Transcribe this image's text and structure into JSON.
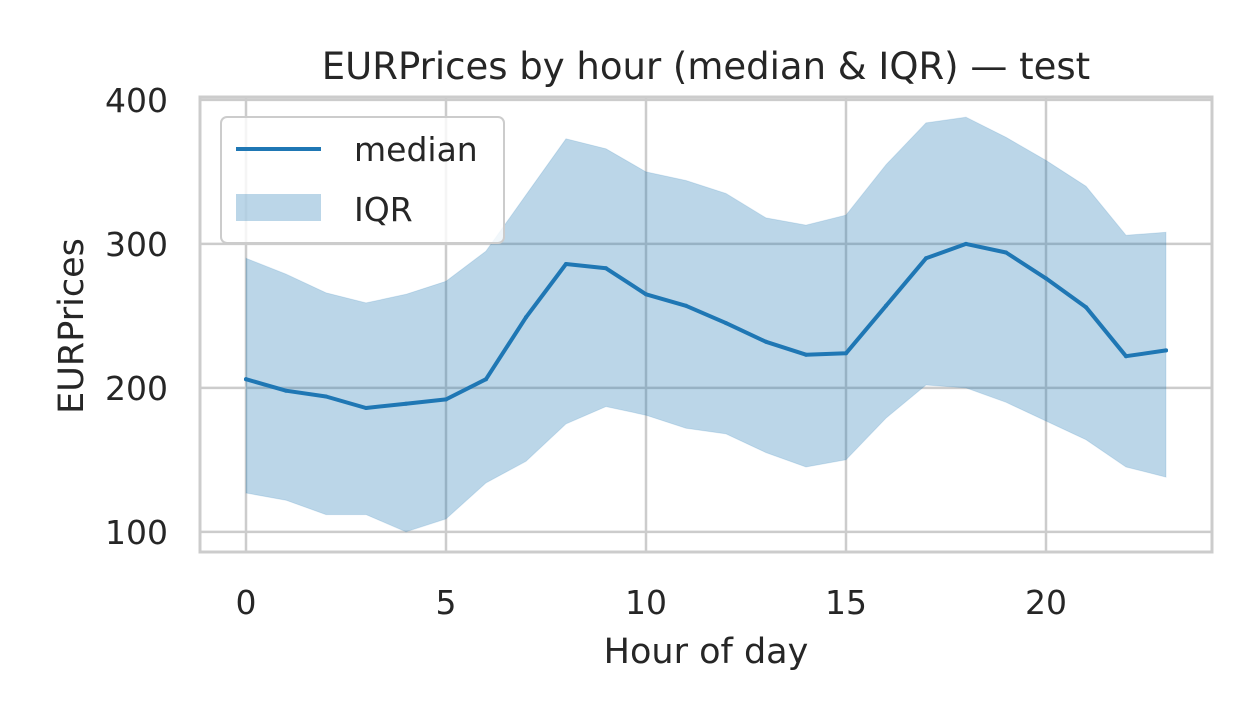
{
  "chart_data": {
    "type": "line",
    "title": "EURPrices by hour (median & IQR) — test",
    "xlabel": "Hour of day",
    "ylabel": "EURPrices",
    "x": [
      0,
      1,
      2,
      3,
      4,
      5,
      6,
      7,
      8,
      9,
      10,
      11,
      12,
      13,
      14,
      15,
      16,
      17,
      18,
      19,
      20,
      21,
      22,
      23
    ],
    "series": [
      {
        "name": "median",
        "values": [
          206,
          198,
          194,
          186,
          189,
          192,
          206,
          249,
          286,
          283,
          265,
          257,
          245,
          232,
          223,
          224,
          257,
          290,
          300,
          294,
          276,
          256,
          222,
          226
        ],
        "color": "#1f77b4"
      }
    ],
    "band": {
      "name": "IQR",
      "lower": [
        127,
        122,
        112,
        112,
        100,
        109,
        134,
        149,
        175,
        187,
        181,
        172,
        168,
        155,
        145,
        150,
        179,
        202,
        200,
        190,
        177,
        164,
        145,
        138
      ],
      "upper": [
        290,
        279,
        266,
        259,
        265,
        274,
        295,
        334,
        373,
        366,
        350,
        344,
        335,
        318,
        313,
        320,
        355,
        384,
        388,
        374,
        358,
        340,
        306,
        308
      ],
      "color": "#1f77b4",
      "alpha": 0.3
    },
    "xlim": [
      -1.15,
      24.15
    ],
    "ylim": [
      86,
      402
    ],
    "xticks": [
      0,
      5,
      10,
      15,
      20
    ],
    "yticks": [
      100,
      200,
      300,
      400
    ],
    "grid": true,
    "legend_position": "top-left"
  }
}
